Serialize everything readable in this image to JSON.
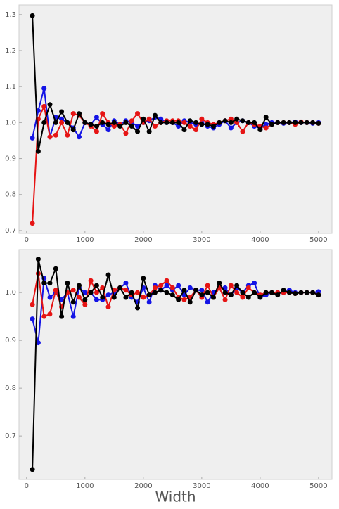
{
  "chart_data": [
    {
      "type": "line",
      "x": [
        100,
        200,
        300,
        400,
        500,
        600,
        700,
        800,
        900,
        1000,
        1100,
        1200,
        1300,
        1400,
        1500,
        1600,
        1700,
        1800,
        1900,
        2000,
        2100,
        2200,
        2300,
        2400,
        2500,
        2600,
        2700,
        2800,
        2900,
        3000,
        3100,
        3200,
        3300,
        3400,
        3500,
        3600,
        3700,
        3800,
        3900,
        4000,
        4100,
        4200,
        4300,
        4400,
        4500,
        4600,
        4700,
        4800,
        4900,
        5000
      ],
      "series": [
        {
          "color": "#1414e6",
          "values": [
            0.957,
            1.033,
            1.095,
            0.96,
            1.015,
            1.01,
            1.0,
            0.985,
            0.96,
            1.0,
            0.995,
            1.015,
            0.995,
            0.98,
            1.005,
            0.995,
            1.005,
            1.0,
            0.99,
            1.0,
            1.005,
            1.015,
            1.01,
            1.0,
            1.0,
            0.99,
            1.005,
            1.0,
            0.995,
            1.0,
            0.99,
            0.985,
            0.995,
            1.005,
            0.985,
            1.0,
            1.005,
            1.0,
            0.99,
            0.985,
            0.995,
            1.0,
            1.0,
            0.998,
            1.0,
            1.002,
            1.0,
            1.0,
            0.998,
            1.0
          ]
        },
        {
          "color": "#e61414",
          "values": [
            0.72,
            1.01,
            1.045,
            0.96,
            0.965,
            1.0,
            0.965,
            1.025,
            1.02,
            1.0,
            0.99,
            0.975,
            1.025,
            1.0,
            0.99,
            0.995,
            0.97,
            1.005,
            1.025,
            1.0,
            1.01,
            0.99,
            1.0,
            1.005,
            1.005,
            1.005,
            1.0,
            0.99,
            0.98,
            1.01,
            1.0,
            0.995,
            1.0,
            1.005,
            1.01,
            1.0,
            0.975,
            1.0,
            0.995,
            0.99,
            0.985,
            0.995,
            1.0,
            1.0,
            1.0,
            0.995,
            1.002,
            1.0,
            1.0,
            0.998
          ]
        },
        {
          "color": "#000000",
          "values": [
            1.297,
            0.92,
            1.0,
            1.05,
            1.0,
            1.03,
            1.0,
            0.98,
            1.025,
            1.0,
            0.995,
            0.99,
            1.0,
            0.995,
            1.0,
            0.99,
            1.0,
            0.99,
            0.975,
            1.01,
            0.975,
            1.02,
            1.0,
            1.0,
            1.0,
            1.0,
            0.98,
            1.005,
            1.0,
            0.995,
            0.995,
            0.99,
            1.0,
            1.005,
            1.0,
            1.01,
            1.005,
            1.0,
            1.0,
            0.98,
            1.015,
            0.995,
            1.0,
            1.0,
            1.0,
            1.0,
            1.0,
            1.0,
            1.0,
            0.998
          ]
        }
      ],
      "xlim": [
        -130,
        5230
      ],
      "ylim": [
        0.692,
        1.327
      ],
      "xticks": [
        0,
        1000,
        2000,
        3000,
        4000,
        5000
      ],
      "yticks": [
        0.7,
        0.8,
        0.9,
        {
          "value": 1,
          "label": "1.0"
        },
        1.1,
        1.2,
        1.3
      ]
    },
    {
      "type": "line",
      "x": [
        100,
        200,
        300,
        400,
        500,
        600,
        700,
        800,
        900,
        1000,
        1100,
        1200,
        1300,
        1400,
        1500,
        1600,
        1700,
        1800,
        1900,
        2000,
        2100,
        2200,
        2300,
        2400,
        2500,
        2600,
        2700,
        2800,
        2900,
        3000,
        3100,
        3200,
        3300,
        3400,
        3500,
        3600,
        3700,
        3800,
        3900,
        4000,
        4100,
        4200,
        4300,
        4400,
        4500,
        4600,
        4700,
        4800,
        4900,
        5000
      ],
      "series": [
        {
          "color": "#1414e6",
          "values": [
            0.945,
            0.895,
            1.03,
            0.99,
            1.0,
            0.985,
            1.0,
            0.95,
            1.01,
            1.0,
            1.0,
            0.985,
            0.985,
            0.995,
            1.0,
            1.01,
            1.02,
            0.99,
            0.98,
            1.01,
            0.98,
            1.015,
            1.005,
            1.015,
            1.005,
            1.015,
            0.995,
            1.01,
            1.005,
            1.005,
            0.98,
            1.0,
            1.01,
            1.01,
            0.995,
            1.01,
            1.0,
            1.015,
            1.02,
            0.99,
            0.995,
            1.0,
            1.0,
            1.0,
            1.005,
            1.0,
            1.0,
            1.0,
            1.0,
            1.002
          ]
        },
        {
          "color": "#e61414",
          "values": [
            0.975,
            1.04,
            0.95,
            0.955,
            1.005,
            0.97,
            1.0,
            1.005,
            0.99,
            0.975,
            1.025,
            1.0,
            1.01,
            0.97,
            1.005,
            1.01,
            1.005,
            0.995,
            1.0,
            0.99,
            0.995,
            1.01,
            1.015,
            1.025,
            1.01,
            0.99,
            0.985,
            0.99,
            1.005,
            0.99,
            1.015,
            0.99,
            1.01,
            0.985,
            1.015,
            1.0,
            0.99,
            1.01,
            1.0,
            0.995,
            1.0,
            1.0,
            1.0,
            1.0,
            1.0,
            0.998,
            1.0,
            1.0,
            1.0,
            0.995
          ]
        },
        {
          "color": "#000000",
          "values": [
            0.63,
            1.07,
            1.02,
            1.02,
            1.05,
            0.95,
            1.02,
            0.98,
            1.015,
            0.985,
            1.0,
            1.015,
            0.99,
            1.037,
            0.99,
            1.01,
            0.99,
            1.0,
            0.968,
            1.03,
            0.995,
            1.0,
            1.005,
            1.0,
            0.995,
            0.985,
            1.005,
            0.98,
            1.005,
            0.995,
            1.0,
            0.99,
            1.02,
            1.0,
            0.995,
            1.015,
            1.0,
            0.99,
            1.0,
            0.99,
            1.0,
            1.0,
            0.995,
            1.005,
            1.0,
            0.998,
            1.0,
            1.0,
            1.0,
            0.995
          ]
        }
      ],
      "xlim": [
        -130,
        5230
      ],
      "ylim": [
        0.609,
        1.09
      ],
      "xticks": [
        0,
        1000,
        2000,
        3000,
        4000,
        5000
      ],
      "yticks": [
        0.7,
        0.8,
        0.9,
        {
          "value": 1,
          "label": "1.0"
        }
      ],
      "xlabel": "Width"
    }
  ]
}
